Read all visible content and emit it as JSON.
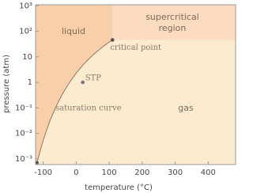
{
  "chart_data": {
    "type": "phase",
    "xlabel": "temperature (°C)",
    "ylabel": "pressure (atm)",
    "xlim": [
      -123,
      483
    ],
    "ylim": [
      0.0006,
      1100
    ],
    "log_y": true,
    "xticks": [
      -100,
      0,
      100,
      200,
      300,
      400
    ],
    "yticks": [
      {
        "value": 0.001,
        "label": "10⁻³"
      },
      {
        "value": 0.01,
        "label": "10⁻²"
      },
      {
        "value": 0.1,
        "label": "10⁻¹"
      },
      1,
      10,
      {
        "value": 100,
        "label": "10²"
      },
      {
        "value": 1000,
        "label": "10³"
      }
    ],
    "background": "#fdebd0",
    "curve": {
      "name": "saturation curve",
      "color": "#8a7a6a",
      "x": [
        -119,
        -100,
        -80,
        -60,
        -40,
        -20,
        0,
        20,
        40,
        60,
        80,
        100,
        110
      ],
      "values": [
        0.0007,
        0.0054,
        0.03,
        0.12,
        0.38,
        1.0,
        2.3,
        4.7,
        8.7,
        15,
        24.5,
        38,
        46
      ]
    },
    "regions": [
      {
        "label": "liquid",
        "color": "#f9cfaa"
      },
      {
        "label": [
          "supercritical",
          "region"
        ],
        "color": "#fcdcc0"
      },
      {
        "label": "gas"
      }
    ],
    "points": [
      {
        "name": "critical point",
        "x": 110,
        "y": 46,
        "color": "#555555"
      },
      {
        "name": "STP",
        "x": 20,
        "y": 1,
        "color": "#777777"
      },
      {
        "x": -119,
        "y": 0.0007,
        "color": "#555555"
      }
    ]
  }
}
